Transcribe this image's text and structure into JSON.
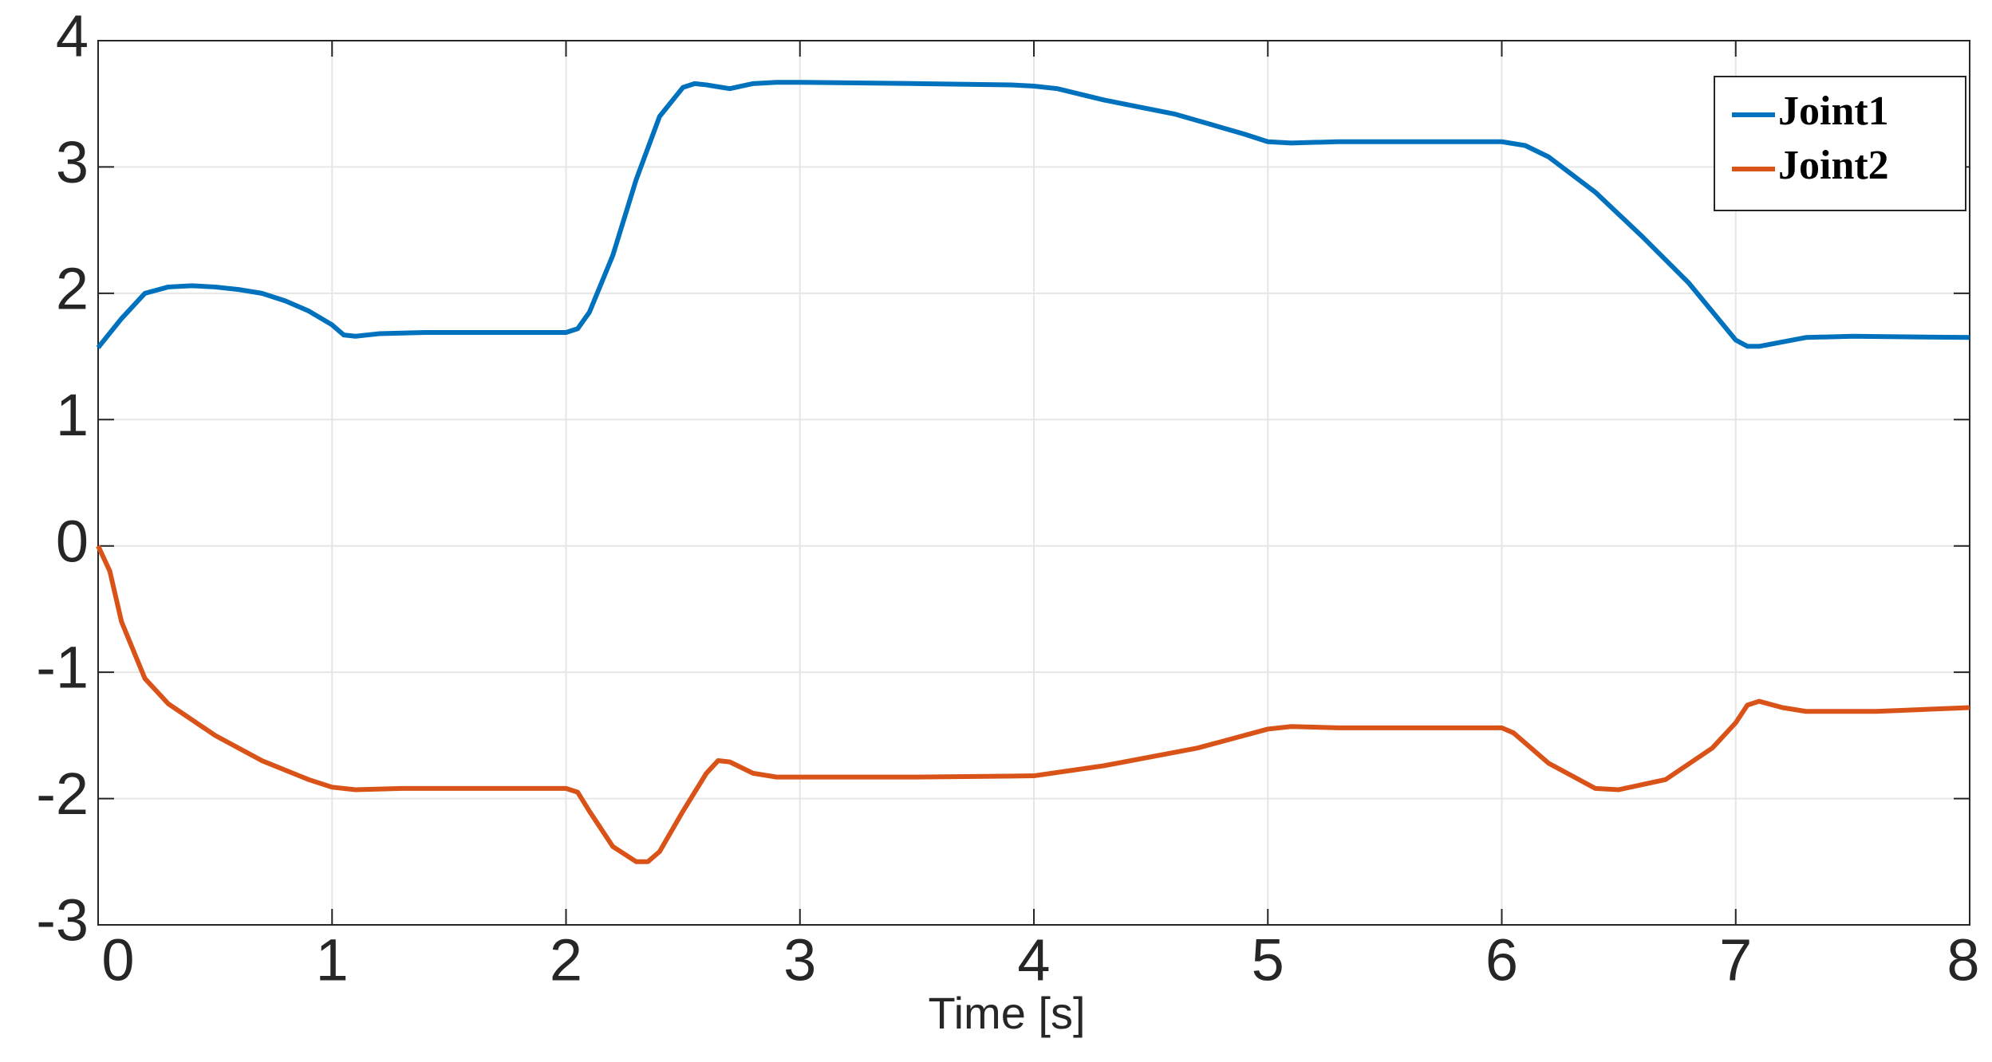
{
  "chart_data": {
    "type": "line",
    "xlabel": "Time [s]",
    "xlim": [
      0,
      8
    ],
    "xticks": [
      0,
      1,
      2,
      3,
      4,
      5,
      6,
      7,
      8
    ],
    "ylim": [
      -3,
      4
    ],
    "yticks": [
      -3,
      -2,
      -1,
      0,
      1,
      2,
      3,
      4
    ],
    "grid": true,
    "legend": "upper-right",
    "series": [
      {
        "name": "Joint1",
        "color": "#0072BD",
        "x": [
          0,
          0.1,
          0.2,
          0.3,
          0.4,
          0.5,
          0.6,
          0.7,
          0.8,
          0.9,
          1.0,
          1.05,
          1.1,
          1.2,
          1.4,
          1.6,
          1.8,
          2.0,
          2.05,
          2.1,
          2.2,
          2.3,
          2.4,
          2.5,
          2.55,
          2.6,
          2.7,
          2.8,
          2.9,
          3.0,
          3.5,
          3.9,
          4.0,
          4.1,
          4.3,
          4.6,
          4.9,
          5.0,
          5.1,
          5.3,
          5.6,
          5.9,
          6.0,
          6.1,
          6.2,
          6.4,
          6.6,
          6.8,
          7.0,
          7.05,
          7.1,
          7.3,
          7.5,
          8.0
        ],
        "values": [
          1.57,
          1.8,
          2.0,
          2.05,
          2.06,
          2.05,
          2.03,
          2.0,
          1.94,
          1.86,
          1.75,
          1.67,
          1.66,
          1.68,
          1.69,
          1.69,
          1.69,
          1.69,
          1.72,
          1.85,
          2.3,
          2.9,
          3.4,
          3.63,
          3.66,
          3.65,
          3.62,
          3.66,
          3.67,
          3.67,
          3.66,
          3.65,
          3.64,
          3.62,
          3.53,
          3.42,
          3.26,
          3.2,
          3.19,
          3.2,
          3.2,
          3.2,
          3.2,
          3.17,
          3.08,
          2.8,
          2.45,
          2.08,
          1.63,
          1.58,
          1.58,
          1.65,
          1.66,
          1.65
        ]
      },
      {
        "name": "Joint2",
        "color": "#D95319",
        "x": [
          0,
          0.05,
          0.1,
          0.2,
          0.3,
          0.5,
          0.7,
          0.9,
          1.0,
          1.1,
          1.3,
          2.0,
          2.05,
          2.1,
          2.2,
          2.3,
          2.35,
          2.4,
          2.5,
          2.6,
          2.65,
          2.7,
          2.8,
          2.9,
          3.0,
          3.5,
          4.0,
          4.3,
          4.7,
          5.0,
          5.1,
          5.3,
          6.0,
          6.05,
          6.2,
          6.4,
          6.5,
          6.7,
          6.9,
          7.0,
          7.05,
          7.1,
          7.2,
          7.3,
          7.6,
          8.0
        ],
        "values": [
          0,
          -0.2,
          -0.6,
          -1.05,
          -1.25,
          -1.5,
          -1.7,
          -1.85,
          -1.91,
          -1.93,
          -1.92,
          -1.92,
          -1.95,
          -2.1,
          -2.38,
          -2.5,
          -2.5,
          -2.42,
          -2.1,
          -1.8,
          -1.7,
          -1.71,
          -1.8,
          -1.83,
          -1.83,
          -1.83,
          -1.82,
          -1.74,
          -1.6,
          -1.45,
          -1.43,
          -1.44,
          -1.44,
          -1.48,
          -1.72,
          -1.92,
          -1.93,
          -1.85,
          -1.6,
          -1.4,
          -1.26,
          -1.23,
          -1.28,
          -1.31,
          -1.31,
          -1.28
        ]
      }
    ]
  }
}
